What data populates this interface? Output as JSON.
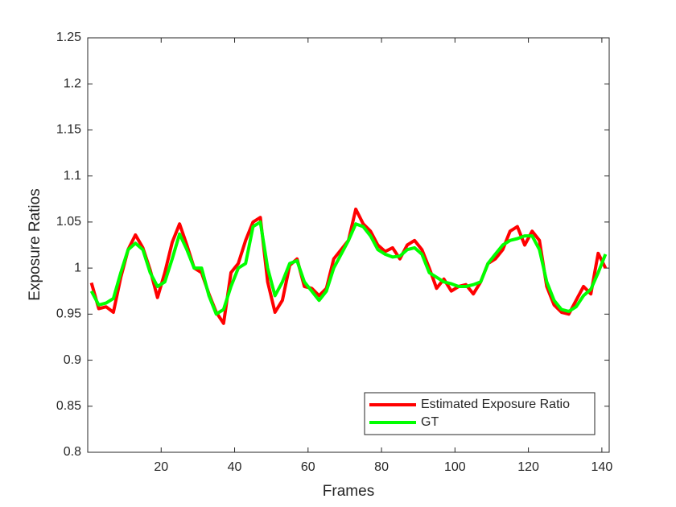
{
  "chart_data": {
    "type": "line",
    "x_label": "Frames",
    "y_label": "Exposure Ratios",
    "xlim": [
      0,
      142
    ],
    "ylim": [
      0.8,
      1.25
    ],
    "xticks": [
      20,
      40,
      60,
      80,
      100,
      120,
      140
    ],
    "yticks": [
      0.8,
      0.85,
      0.9,
      0.95,
      1,
      1.05,
      1.1,
      1.15,
      1.2,
      1.25
    ],
    "legend": "lower right",
    "x": [
      1,
      3,
      5,
      7,
      9,
      11,
      13,
      15,
      17,
      19,
      21,
      23,
      25,
      27,
      29,
      31,
      33,
      35,
      37,
      39,
      41,
      43,
      45,
      47,
      49,
      51,
      53,
      55,
      57,
      59,
      61,
      63,
      65,
      67,
      69,
      71,
      73,
      75,
      77,
      79,
      81,
      83,
      85,
      87,
      89,
      91,
      93,
      95,
      97,
      99,
      101,
      103,
      105,
      107,
      109,
      111,
      113,
      115,
      117,
      119,
      121,
      123,
      125,
      127,
      129,
      131,
      133,
      135,
      137,
      139,
      141
    ],
    "series": [
      {
        "name": "Estimated Exposure Ratio",
        "color": "#ff0000",
        "width": 4,
        "values": [
          0.984,
          0.956,
          0.958,
          0.952,
          0.99,
          1.02,
          1.036,
          1.022,
          0.998,
          0.968,
          0.995,
          1.028,
          1.048,
          1.025,
          1.0,
          0.995,
          0.972,
          0.952,
          0.94,
          0.995,
          1.005,
          1.03,
          1.05,
          1.055,
          0.985,
          0.952,
          0.965,
          1.003,
          1.01,
          0.98,
          0.978,
          0.97,
          0.978,
          1.01,
          1.02,
          1.03,
          1.064,
          1.048,
          1.04,
          1.025,
          1.018,
          1.022,
          1.01,
          1.025,
          1.03,
          1.02,
          1.0,
          0.978,
          0.988,
          0.975,
          0.98,
          0.982,
          0.972,
          0.985,
          1.005,
          1.01,
          1.02,
          1.04,
          1.045,
          1.025,
          1.04,
          1.03,
          0.98,
          0.96,
          0.952,
          0.95,
          0.965,
          0.98,
          0.972,
          1.016,
          1.0
        ]
      },
      {
        "name": "GT",
        "color": "#00ff00",
        "width": 4,
        "values": [
          0.975,
          0.96,
          0.962,
          0.967,
          0.995,
          1.02,
          1.027,
          1.02,
          0.995,
          0.98,
          0.985,
          1.01,
          1.037,
          1.02,
          1.0,
          1.0,
          0.97,
          0.95,
          0.955,
          0.98,
          1.0,
          1.005,
          1.045,
          1.05,
          1.0,
          0.97,
          0.985,
          1.005,
          1.008,
          0.985,
          0.975,
          0.965,
          0.975,
          1.0,
          1.015,
          1.03,
          1.048,
          1.045,
          1.035,
          1.02,
          1.015,
          1.012,
          1.013,
          1.02,
          1.022,
          1.015,
          0.995,
          0.99,
          0.985,
          0.983,
          0.98,
          0.98,
          0.982,
          0.985,
          1.005,
          1.015,
          1.025,
          1.03,
          1.032,
          1.035,
          1.035,
          1.02,
          0.985,
          0.965,
          0.955,
          0.953,
          0.958,
          0.97,
          0.977,
          0.995,
          1.015
        ]
      }
    ]
  }
}
